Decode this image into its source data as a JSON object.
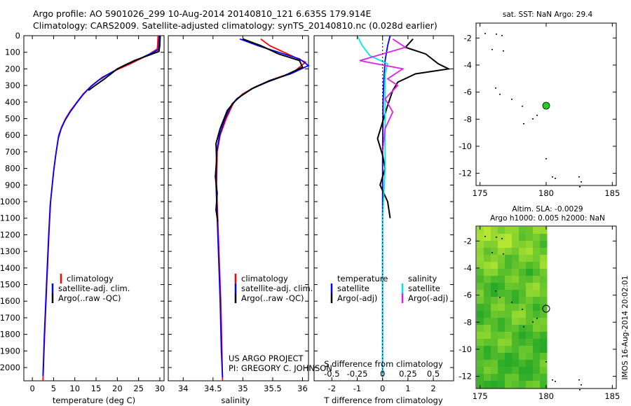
{
  "header": {
    "line1": "Argo profile: AO 5901026_299 10-Aug-2014 20140810_121 6.635S 179.914E",
    "line2": "Climatology: CARS2009. Satellite-adjusted climatology: synTS_20140810.nc (0.028d earlier)"
  },
  "colors": {
    "climatology": "#ff0000",
    "satellite": "#0000ff",
    "argo": "#000000",
    "sal_satellite": "#00e5e5",
    "sal_argo": "#e020e0",
    "float_marker": "#22cc22"
  },
  "pressure_axis": {
    "ticks": [
      "0",
      "100",
      "200",
      "300",
      "400",
      "500",
      "600",
      "700",
      "800",
      "900",
      "1000",
      "1100",
      "1200",
      "1300",
      "1400",
      "1500",
      "1600",
      "1700",
      "1800",
      "1900",
      "2000"
    ]
  },
  "chart_data": [
    {
      "id": "temperature",
      "type": "line",
      "xlabel": "temperature (deg C)",
      "xlim": [
        -2,
        31
      ],
      "ylim": [
        2080,
        0
      ],
      "xticks": [
        "0",
        "5",
        "10",
        "15",
        "20",
        "25",
        "30"
      ],
      "legend": [
        "climatology",
        "satellite-adj. clim.",
        "Argo(..raw -QC)"
      ],
      "series": [
        {
          "name": "climatology",
          "color": "#ff0000",
          "points": [
            [
              29.6,
              0
            ],
            [
              29.5,
              50
            ],
            [
              29.4,
              80
            ],
            [
              27,
              120
            ],
            [
              23,
              170
            ],
            [
              19.5,
              210
            ],
            [
              16.5,
              250
            ],
            [
              14,
              300
            ],
            [
              12,
              350
            ],
            [
              10.5,
              400
            ],
            [
              9,
              450
            ],
            [
              7.8,
              500
            ],
            [
              6.9,
              550
            ],
            [
              6.2,
              600
            ],
            [
              5.6,
              700
            ],
            [
              5.1,
              800
            ],
            [
              4.7,
              900
            ],
            [
              4.3,
              1000
            ],
            [
              3.9,
              1200
            ],
            [
              3.4,
              1500
            ],
            [
              2.9,
              1800
            ],
            [
              2.5,
              2080
            ]
          ]
        },
        {
          "name": "satellite",
          "color": "#0000ff",
          "points": [
            [
              29.9,
              0
            ],
            [
              29.8,
              50
            ],
            [
              29.7,
              85
            ],
            [
              26,
              130
            ],
            [
              21.5,
              180
            ],
            [
              18,
              230
            ],
            [
              15.5,
              270
            ],
            [
              13.6,
              310
            ],
            [
              11.8,
              360
            ],
            [
              10.3,
              410
            ],
            [
              8.9,
              460
            ],
            [
              7.7,
              510
            ],
            [
              6.8,
              560
            ],
            [
              6.1,
              620
            ],
            [
              5.5,
              720
            ],
            [
              5.0,
              820
            ],
            [
              4.6,
              920
            ],
            [
              4.2,
              1020
            ],
            [
              3.8,
              1220
            ],
            [
              3.3,
              1520
            ],
            [
              2.8,
              1820
            ],
            [
              2.5,
              2050
            ]
          ]
        },
        {
          "name": "argo",
          "color": "#000000",
          "points": [
            [
              30.1,
              0
            ],
            [
              30.0,
              60
            ],
            [
              29.8,
              95
            ],
            [
              24,
              150
            ],
            [
              20,
              200
            ],
            [
              17,
              260
            ],
            [
              14.8,
              300
            ],
            [
              13.2,
              330
            ]
          ]
        }
      ]
    },
    {
      "id": "salinity",
      "type": "line",
      "xlabel": "salinity",
      "xlim": [
        33.75,
        36.1
      ],
      "ylim": [
        2080,
        0
      ],
      "xticks": [
        "34",
        "34.5",
        "35",
        "35.5",
        "36"
      ],
      "legend": [
        "climatology",
        "satellite-adj. clim.",
        "Argo(..raw -QC)"
      ],
      "annotation": [
        "US ARGO PROJECT",
        "PI: GREGORY C. JOHNSON"
      ],
      "series": [
        {
          "name": "climatology",
          "color": "#ff0000",
          "points": [
            [
              35.3,
              20
            ],
            [
              35.45,
              60
            ],
            [
              35.75,
              110
            ],
            [
              36.05,
              160
            ],
            [
              35.85,
              220
            ],
            [
              35.45,
              270
            ],
            [
              35.2,
              310
            ],
            [
              35.0,
              350
            ],
            [
              34.85,
              400
            ],
            [
              34.72,
              500
            ],
            [
              34.62,
              600
            ],
            [
              34.57,
              700
            ],
            [
              34.56,
              900
            ],
            [
              34.58,
              1100
            ],
            [
              34.6,
              1300
            ],
            [
              34.63,
              1600
            ],
            [
              34.65,
              1900
            ],
            [
              34.66,
              2080
            ]
          ]
        },
        {
          "name": "satellite",
          "color": "#0000ff",
          "points": [
            [
              34.95,
              20
            ],
            [
              35.25,
              60
            ],
            [
              35.6,
              100
            ],
            [
              35.95,
              140
            ],
            [
              36.1,
              180
            ],
            [
              35.8,
              230
            ],
            [
              35.45,
              270
            ],
            [
              35.2,
              310
            ],
            [
              34.98,
              360
            ],
            [
              34.82,
              410
            ],
            [
              34.7,
              500
            ],
            [
              34.61,
              600
            ],
            [
              34.56,
              700
            ],
            [
              34.55,
              900
            ],
            [
              34.57,
              1100
            ],
            [
              34.59,
              1300
            ],
            [
              34.62,
              1600
            ],
            [
              34.64,
              1900
            ],
            [
              34.66,
              2060
            ]
          ]
        },
        {
          "name": "argo",
          "color": "#000000",
          "points": [
            [
              35.0,
              20
            ],
            [
              35.3,
              60
            ],
            [
              35.6,
              110
            ],
            [
              35.95,
              150
            ],
            [
              36.0,
              190
            ],
            [
              35.7,
              240
            ],
            [
              35.4,
              280
            ],
            [
              35.15,
              320
            ],
            [
              34.9,
              380
            ],
            [
              34.74,
              450
            ],
            [
              34.62,
              560
            ],
            [
              34.55,
              650
            ],
            [
              34.56,
              750
            ],
            [
              34.54,
              850
            ],
            [
              34.57,
              950
            ],
            [
              34.55,
              1050
            ],
            [
              34.58,
              1120
            ]
          ]
        }
      ]
    },
    {
      "id": "difference",
      "type": "line",
      "xlabel": "T difference from climatology",
      "xlabel_top": "S difference from climatology",
      "xlim": [
        -2.7,
        2.8
      ],
      "ylim": [
        2080,
        0
      ],
      "xticks": [
        "-2",
        "-1",
        "0",
        "1",
        "2"
      ],
      "xticks_top": [
        "-0.5",
        "-0.25",
        "0",
        "0.25",
        "0.5"
      ],
      "legend_titles": [
        "temperature",
        "salinity"
      ],
      "legend": [
        "satellite",
        "Argo(-adj)",
        "satellite",
        "Argo(-adj)"
      ],
      "series": [
        {
          "name": "temperature satellite",
          "color": "#0000ff",
          "points": [
            [
              0.3,
              0
            ],
            [
              0.2,
              60
            ],
            [
              0.1,
              150
            ],
            [
              0.05,
              260
            ],
            [
              0.02,
              400
            ],
            [
              0.0,
              700
            ],
            [
              0.0,
              2050
            ]
          ]
        },
        {
          "name": "temperature Argo(-adj)",
          "color": "#000000",
          "points": [
            [
              1.2,
              20
            ],
            [
              0.9,
              70
            ],
            [
              1.7,
              110
            ],
            [
              2.2,
              170
            ],
            [
              2.6,
              200
            ],
            [
              1.3,
              230
            ],
            [
              0.6,
              280
            ],
            [
              0.4,
              330
            ],
            [
              0.2,
              420
            ],
            [
              0.0,
              520
            ],
            [
              -0.2,
              620
            ],
            [
              0.0,
              720
            ],
            [
              0.1,
              800
            ],
            [
              -0.1,
              900
            ],
            [
              0.2,
              1000
            ],
            [
              0.3,
              1100
            ]
          ]
        },
        {
          "name": "salinity satellite",
          "color": "#00e5e5",
          "points": [
            [
              -1.0,
              0
            ],
            [
              -0.8,
              60
            ],
            [
              -0.5,
              120
            ],
            [
              0.2,
              170
            ],
            [
              0.1,
              230
            ],
            [
              0.1,
              400
            ],
            [
              0.1,
              800
            ],
            [
              0.0,
              1100
            ],
            [
              0.0,
              2050
            ]
          ]
        },
        {
          "name": "salinity Argo(-adj)",
          "color": "#e020e0",
          "points": [
            [
              0.4,
              20
            ],
            [
              0.9,
              70
            ],
            [
              -0.9,
              150
            ],
            [
              0.8,
              200
            ],
            [
              0.2,
              260
            ],
            [
              0.6,
              300
            ],
            [
              0.1,
              380
            ],
            [
              0.4,
              460
            ],
            [
              0.1,
              560
            ],
            [
              0.0,
              700
            ]
          ]
        }
      ]
    }
  ],
  "sst_map": {
    "title": "sat. SST: NaN Argo: 29.4",
    "xticks": [
      "175",
      "180",
      "185"
    ],
    "yticks": [
      "-2",
      "-4",
      "-6",
      "-8",
      "-10",
      "-12"
    ]
  },
  "sla_map": {
    "title1": "Altim. SLA: -0.0029",
    "title2": "Argo h1000: 0.005 h2000: NaN",
    "xticks": [
      "175",
      "180",
      "185"
    ],
    "yticks": [
      "-2",
      "-4",
      "-6",
      "-8",
      "-10",
      "-12"
    ]
  },
  "stamp": "IMOS 16-Aug-2014 20:02:01"
}
